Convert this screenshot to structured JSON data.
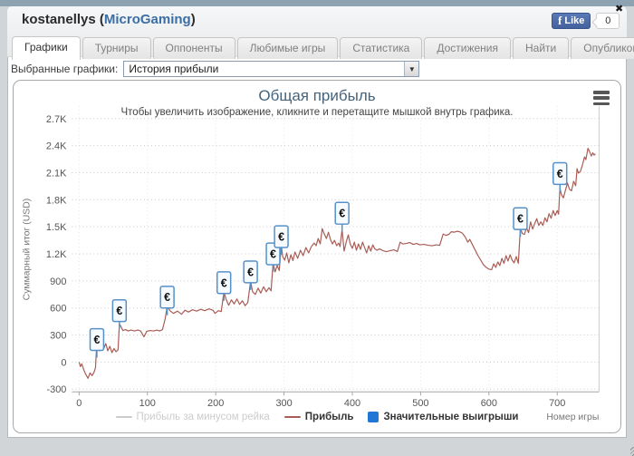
{
  "window": {
    "title_user": "kostanellys (",
    "title_network": "MicroGaming",
    "title_suffix": ")",
    "close_glyph": "✖"
  },
  "facebook": {
    "f_glyph": "f",
    "like_label": "Like",
    "like_count": "0"
  },
  "tabs": [
    {
      "name": "graphs",
      "label": "Графики",
      "active": true
    },
    {
      "name": "tournaments",
      "label": "Турниры",
      "active": false
    },
    {
      "name": "opponents",
      "label": "Оппоненты",
      "active": false
    },
    {
      "name": "favorite-games",
      "label": "Любимые игры",
      "active": false
    },
    {
      "name": "statistics",
      "label": "Статистика",
      "active": false
    },
    {
      "name": "achievements",
      "label": "Достижения",
      "active": false
    },
    {
      "name": "find",
      "label": "Найти",
      "active": false
    },
    {
      "name": "publish",
      "label": "Опубликовать",
      "active": false
    }
  ],
  "graph_selector": {
    "label": "Выбранные графики:",
    "value": "История прибыли",
    "arrow_glyph": "▼"
  },
  "colors": {
    "accent_blue": "#3a6ea5",
    "profit_line": "#a95c55",
    "flag_border": "#5591c8",
    "flag_fill": "#f6fbff",
    "legend_blue": "#2277d4",
    "disabled_legend": "#cccccc"
  },
  "chart_data": {
    "type": "line",
    "title": "Общая прибыль",
    "subtitle": "Чтобы увеличить изображение, кликните и перетащите мышкой внутрь графика.",
    "xlabel": "Номер игры",
    "ylabel": "Суммарный итог (USD)",
    "xlim": [
      0,
      762
    ],
    "ylim": [
      -300,
      2700
    ],
    "x_ticks": [
      0,
      100,
      200,
      300,
      400,
      500,
      600,
      700
    ],
    "y_ticks": [
      -300,
      0,
      300,
      600,
      900,
      1200,
      1500,
      1800,
      2100,
      2400,
      2700
    ],
    "y_tick_labels": [
      "-300",
      "0",
      "300",
      "600",
      "900",
      "1.2K",
      "1.5K",
      "1.8K",
      "2.1K",
      "2.4K",
      "2.7K"
    ],
    "grid": true,
    "legend_position": "bottom",
    "legend": [
      {
        "label": "Прибыль за минусом рейка",
        "swatch": "line",
        "color": "#cccccc",
        "disabled": true
      },
      {
        "label": "Прибыль",
        "swatch": "line",
        "color": "#a95c55",
        "disabled": false
      },
      {
        "label": "Значительные выигрыши",
        "swatch": "square",
        "color": "#2277d4",
        "disabled": false
      }
    ],
    "series": [
      {
        "name": "Прибыль",
        "color": "#a95c55",
        "points": [
          [
            0,
            0
          ],
          [
            2,
            -50
          ],
          [
            4,
            -20
          ],
          [
            7,
            -90
          ],
          [
            10,
            -140
          ],
          [
            13,
            -180
          ],
          [
            16,
            -120
          ],
          [
            19,
            -150
          ],
          [
            22,
            -110
          ],
          [
            24,
            -60
          ],
          [
            26,
            230
          ],
          [
            28,
            150
          ],
          [
            30,
            125
          ],
          [
            33,
            225
          ],
          [
            36,
            150
          ],
          [
            39,
            205
          ],
          [
            42,
            125
          ],
          [
            45,
            175
          ],
          [
            48,
            105
          ],
          [
            51,
            150
          ],
          [
            54,
            115
          ],
          [
            57,
            135
          ],
          [
            59,
            420
          ],
          [
            61,
            400
          ],
          [
            64,
            350
          ],
          [
            68,
            360
          ],
          [
            72,
            345
          ],
          [
            76,
            355
          ],
          [
            81,
            345
          ],
          [
            86,
            355
          ],
          [
            90,
            345
          ],
          [
            95,
            280
          ],
          [
            99,
            340
          ],
          [
            104,
            350
          ],
          [
            109,
            345
          ],
          [
            114,
            355
          ],
          [
            118,
            345
          ],
          [
            122,
            360
          ],
          [
            126,
            480
          ],
          [
            129,
            620
          ],
          [
            133,
            570
          ],
          [
            138,
            540
          ],
          [
            144,
            565
          ],
          [
            150,
            530
          ],
          [
            155,
            575
          ],
          [
            160,
            555
          ],
          [
            166,
            580
          ],
          [
            172,
            565
          ],
          [
            178,
            585
          ],
          [
            184,
            570
          ],
          [
            190,
            590
          ],
          [
            196,
            575
          ],
          [
            199,
            540
          ],
          [
            204,
            570
          ],
          [
            208,
            560
          ],
          [
            212,
            780
          ],
          [
            215,
            700
          ],
          [
            219,
            630
          ],
          [
            223,
            690
          ],
          [
            227,
            645
          ],
          [
            231,
            700
          ],
          [
            235,
            640
          ],
          [
            239,
            680
          ],
          [
            243,
            625
          ],
          [
            247,
            660
          ],
          [
            251,
            900
          ],
          [
            254,
            780
          ],
          [
            258,
            750
          ],
          [
            262,
            820
          ],
          [
            266,
            765
          ],
          [
            270,
            835
          ],
          [
            274,
            780
          ],
          [
            278,
            825
          ],
          [
            281,
            790
          ],
          [
            284,
            1100
          ],
          [
            287,
            1000
          ],
          [
            290,
            1070
          ],
          [
            293,
            1015
          ],
          [
            296,
            1300
          ],
          [
            298,
            1170
          ],
          [
            301,
            1130
          ],
          [
            304,
            1210
          ],
          [
            307,
            1100
          ],
          [
            310,
            1190
          ],
          [
            313,
            1125
          ],
          [
            316,
            1220
          ],
          [
            320,
            1150
          ],
          [
            324,
            1240
          ],
          [
            328,
            1180
          ],
          [
            332,
            1270
          ],
          [
            336,
            1210
          ],
          [
            340,
            1280
          ],
          [
            344,
            1320
          ],
          [
            347,
            1290
          ],
          [
            350,
            1370
          ],
          [
            353,
            1310
          ],
          [
            356,
            1480
          ],
          [
            359,
            1420
          ],
          [
            362,
            1370
          ],
          [
            365,
            1440
          ],
          [
            368,
            1360
          ],
          [
            371,
            1310
          ],
          [
            374,
            1350
          ],
          [
            377,
            1290
          ],
          [
            380,
            1320
          ],
          [
            382,
            1280
          ],
          [
            385,
            1470
          ],
          [
            388,
            1230
          ],
          [
            391,
            1330
          ],
          [
            394,
            1410
          ],
          [
            397,
            1310
          ],
          [
            400,
            1260
          ],
          [
            403,
            1330
          ],
          [
            406,
            1240
          ],
          [
            409,
            1310
          ],
          [
            412,
            1250
          ],
          [
            415,
            1330
          ],
          [
            418,
            1270
          ],
          [
            421,
            1210
          ],
          [
            424,
            1290
          ],
          [
            427,
            1230
          ],
          [
            430,
            1300
          ],
          [
            433,
            1255
          ],
          [
            436,
            1240
          ],
          [
            440,
            1255
          ],
          [
            445,
            1235
          ],
          [
            450,
            1225
          ],
          [
            455,
            1235
          ],
          [
            461,
            1245
          ],
          [
            466,
            1225
          ],
          [
            470,
            1330
          ],
          [
            474,
            1310
          ],
          [
            479,
            1315
          ],
          [
            484,
            1325
          ],
          [
            489,
            1305
          ],
          [
            494,
            1315
          ],
          [
            499,
            1300
          ],
          [
            505,
            1305
          ],
          [
            511,
            1295
          ],
          [
            517,
            1290
          ],
          [
            523,
            1300
          ],
          [
            528,
            1295
          ],
          [
            533,
            1420
          ],
          [
            537,
            1405
          ],
          [
            541,
            1415
          ],
          [
            545,
            1445
          ],
          [
            549,
            1440
          ],
          [
            553,
            1450
          ],
          [
            557,
            1445
          ],
          [
            561,
            1430
          ],
          [
            565,
            1390
          ],
          [
            569,
            1330
          ],
          [
            572,
            1360
          ],
          [
            576,
            1300
          ],
          [
            580,
            1240
          ],
          [
            584,
            1180
          ],
          [
            588,
            1130
          ],
          [
            592,
            1080
          ],
          [
            596,
            1050
          ],
          [
            600,
            1030
          ],
          [
            604,
            1025
          ],
          [
            607,
            1090
          ],
          [
            610,
            1050
          ],
          [
            613,
            1110
          ],
          [
            616,
            1070
          ],
          [
            619,
            1150
          ],
          [
            622,
            1095
          ],
          [
            625,
            1180
          ],
          [
            628,
            1120
          ],
          [
            631,
            1190
          ],
          [
            634,
            1130
          ],
          [
            637,
            1100
          ],
          [
            640,
            1170
          ],
          [
            643,
            1095
          ],
          [
            646,
            1480
          ],
          [
            649,
            1425
          ],
          [
            652,
            1415
          ],
          [
            655,
            1490
          ],
          [
            658,
            1435
          ],
          [
            661,
            1555
          ],
          [
            664,
            1475
          ],
          [
            667,
            1535
          ],
          [
            670,
            1590
          ],
          [
            673,
            1515
          ],
          [
            676,
            1555
          ],
          [
            679,
            1515
          ],
          [
            682,
            1600
          ],
          [
            685,
            1555
          ],
          [
            688,
            1645
          ],
          [
            691,
            1595
          ],
          [
            694,
            1680
          ],
          [
            697,
            1625
          ],
          [
            700,
            1680
          ],
          [
            702,
            1640
          ],
          [
            704,
            1930
          ],
          [
            706,
            1860
          ],
          [
            709,
            1820
          ],
          [
            712,
            1905
          ],
          [
            715,
            1985
          ],
          [
            718,
            1915
          ],
          [
            721,
            1900
          ],
          [
            724,
            2005
          ],
          [
            727,
            1955
          ],
          [
            729,
            2145
          ],
          [
            731,
            2095
          ],
          [
            734,
            2115
          ],
          [
            737,
            2185
          ],
          [
            740,
            2275
          ],
          [
            742,
            2245
          ],
          [
            745,
            2370
          ],
          [
            747,
            2340
          ],
          [
            750,
            2285
          ],
          [
            752,
            2320
          ],
          [
            754,
            2295
          ],
          [
            756,
            2310
          ]
        ]
      }
    ],
    "markers": {
      "name": "Значительные выигрыши",
      "symbol": "€",
      "items": [
        [
          26,
          250
        ],
        [
          59,
          570
        ],
        [
          129,
          720
        ],
        [
          212,
          880
        ],
        [
          251,
          1000
        ],
        [
          284,
          1200
        ],
        [
          296,
          1390
        ],
        [
          385,
          1650
        ],
        [
          646,
          1590
        ],
        [
          704,
          2090
        ]
      ]
    }
  }
}
